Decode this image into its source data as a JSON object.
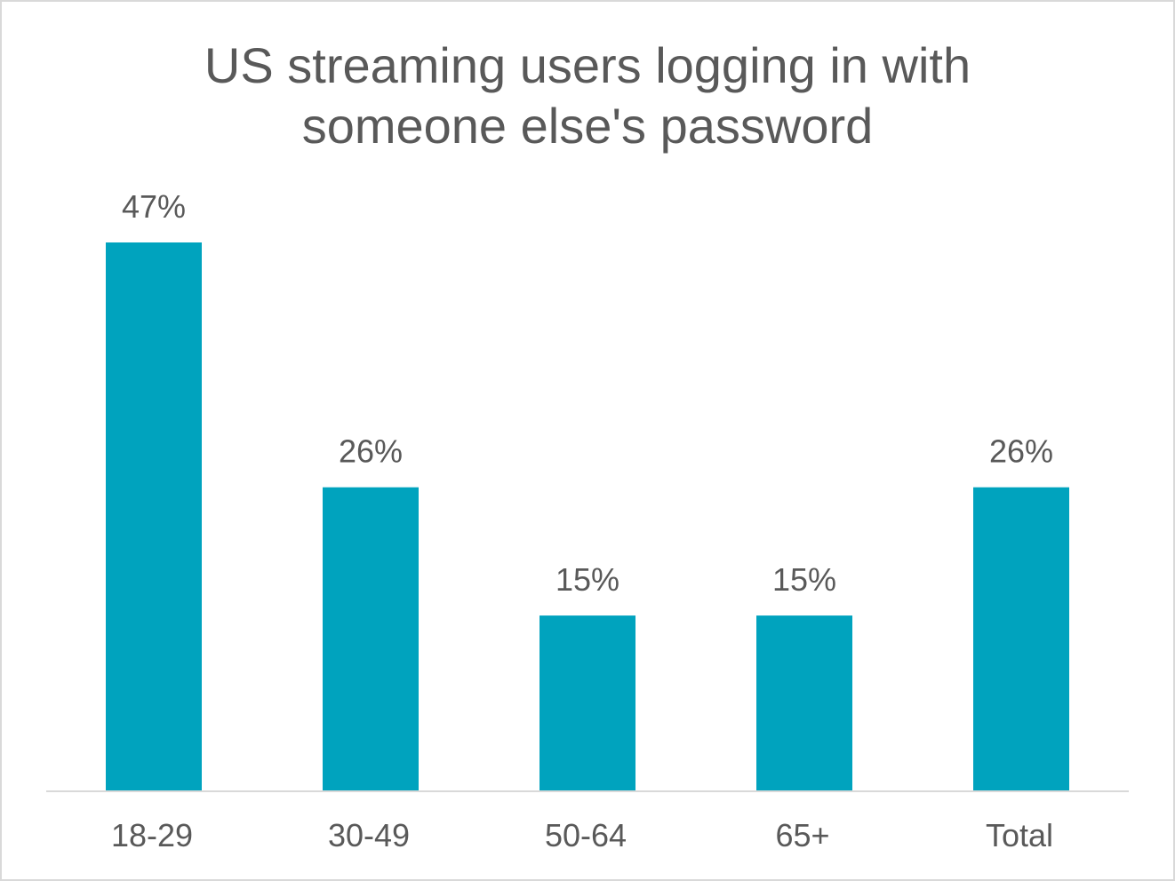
{
  "chart_data": {
    "type": "bar",
    "title_lines": [
      "US streaming users logging in with",
      "someone else's password"
    ],
    "categories": [
      "18-29",
      "30-49",
      "50-64",
      "65+",
      "Total"
    ],
    "values": [
      47,
      26,
      15,
      15,
      26
    ],
    "data_labels": [
      "47%",
      "26%",
      "15%",
      "15%",
      "26%"
    ],
    "ylim": [
      0,
      47
    ],
    "grid": false,
    "legend": "none",
    "bar_color": "#00A3BE",
    "text_color": "#595959",
    "axis_color": "#d9d9d9"
  }
}
